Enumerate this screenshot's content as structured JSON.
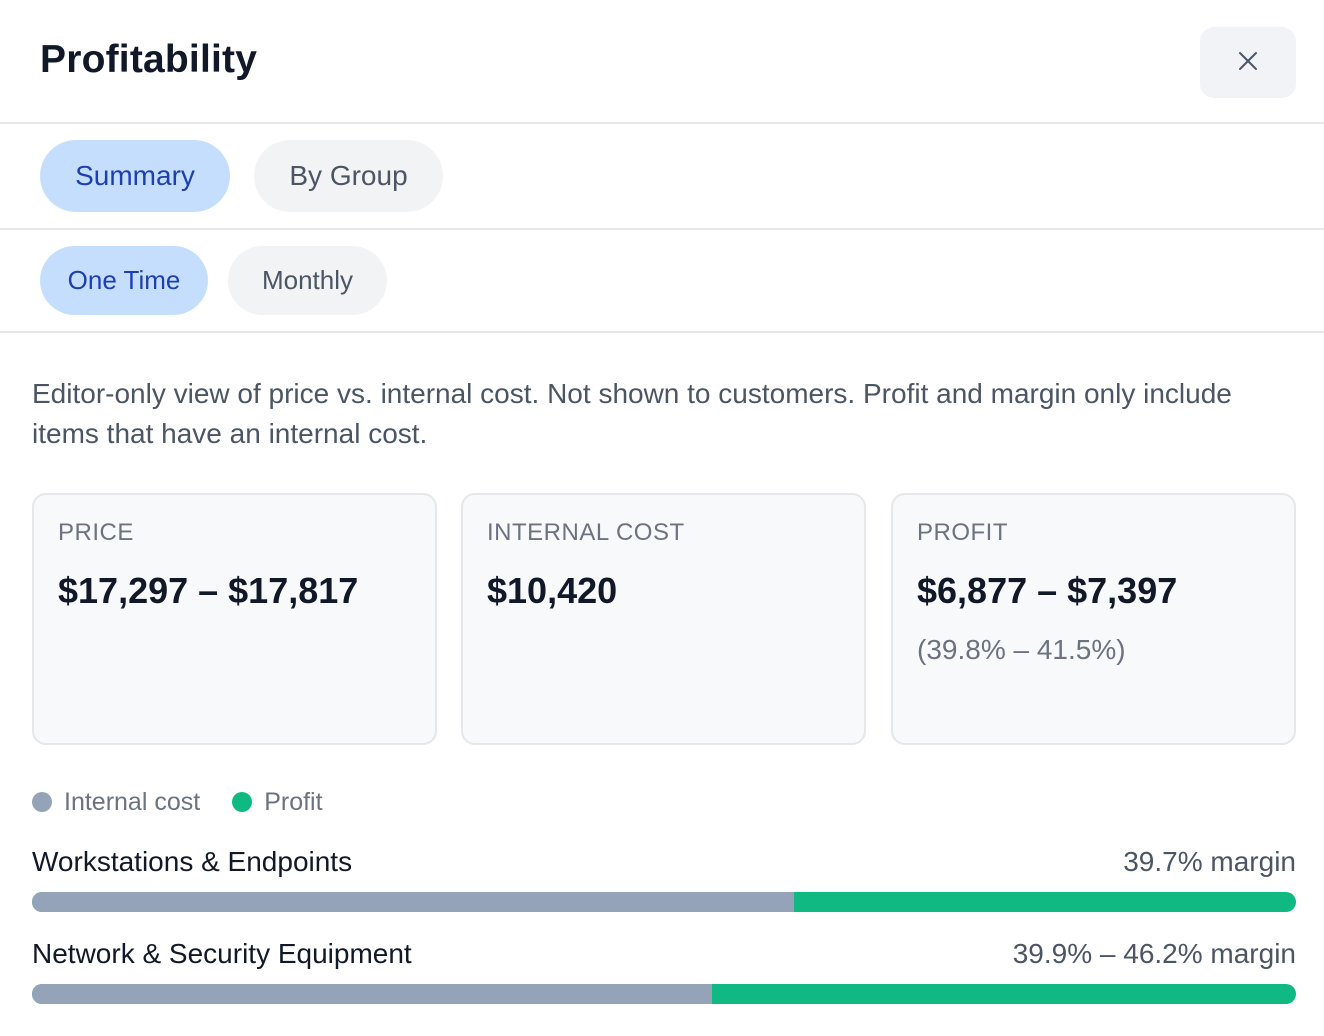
{
  "dialog": {
    "title": "Profitability",
    "close_icon": "close-icon"
  },
  "view_tabs": [
    {
      "label": "Summary",
      "active": true
    },
    {
      "label": "By Group",
      "active": false
    }
  ],
  "period_tabs": [
    {
      "label": "One Time",
      "active": true
    },
    {
      "label": "Monthly",
      "active": false
    }
  ],
  "description": "Editor-only view of price vs. internal cost. Not shown to customers. Profit and margin only include items that have an internal cost.",
  "cards": {
    "price": {
      "label": "PRICE",
      "value": "$17,297 – $17,817"
    },
    "internal_cost": {
      "label": "INTERNAL COST",
      "value": "$10,420"
    },
    "profit": {
      "label": "PROFIT",
      "value": "$6,877 – $7,397",
      "margin": "(39.8% – 41.5%)"
    }
  },
  "legend": [
    {
      "label": "Internal cost",
      "color": "#94a3b8"
    },
    {
      "label": "Profit",
      "color": "#10b981"
    }
  ],
  "groups": [
    {
      "name": "Workstations & Endpoints",
      "margin": "39.7% margin",
      "cost_fraction": 0.603
    },
    {
      "name": "Network & Security Equipment",
      "margin": "39.9% – 46.2% margin",
      "cost_fraction": 0.538
    }
  ],
  "colors": {
    "cost": "#94a3b8",
    "profit": "#10b981",
    "active_pill": "#c6defd",
    "active_text": "#1e40af"
  }
}
